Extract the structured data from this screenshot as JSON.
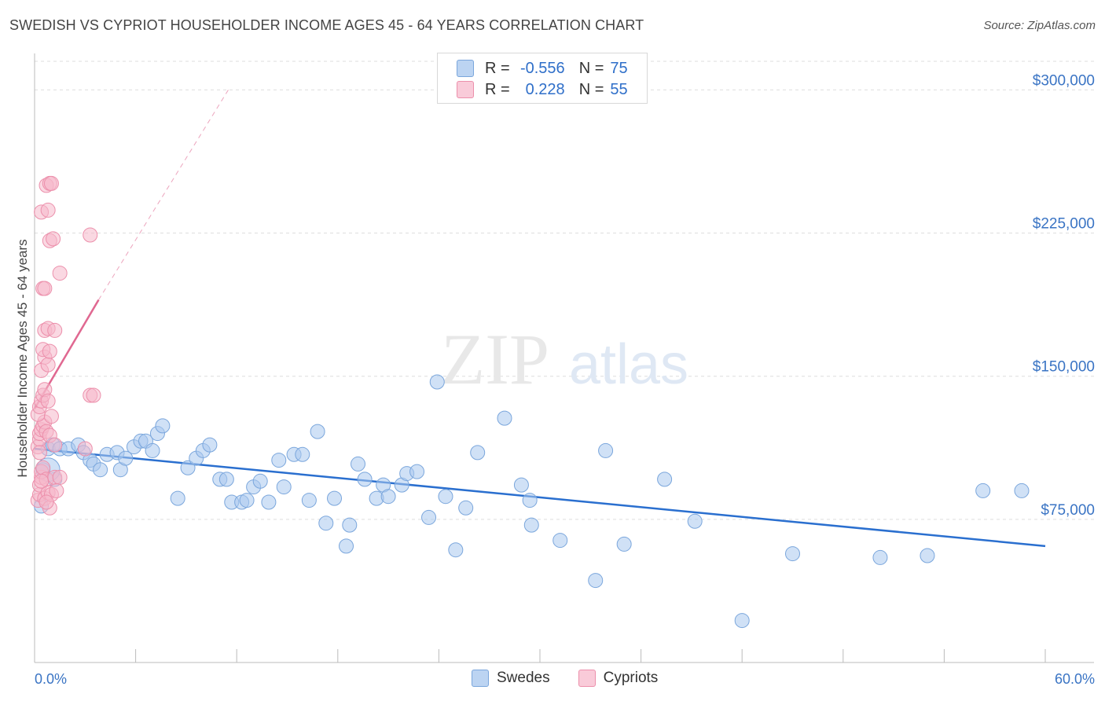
{
  "header": {
    "title": "SWEDISH VS CYPRIOT HOUSEHOLDER INCOME AGES 45 - 64 YEARS CORRELATION CHART",
    "source": "Source: ZipAtlas.com"
  },
  "watermark": {
    "zip": "ZIP",
    "atlas": "atlas"
  },
  "colors": {
    "swedes_fill": "#aac8ee",
    "swedes_stroke": "#7aa6dc",
    "swedes_line": "#2a6fcf",
    "cypriots_fill": "#f6b8cb",
    "cypriots_stroke": "#ec8fab",
    "cypriots_line": "#e06891",
    "tick_text": "#3a74c4",
    "grid": "#dddddd"
  },
  "legend": {
    "rows": [
      {
        "r_label": "R =",
        "r_value": "-0.556",
        "n_label": "N =",
        "n_value": "75"
      },
      {
        "r_label": "R =",
        "r_value": "0.228",
        "n_label": "N =",
        "n_value": "55"
      }
    ]
  },
  "bottom_legend": {
    "items": [
      "Swedes",
      "Cypriots"
    ]
  },
  "chart_data": {
    "type": "scatter",
    "title": "SWEDISH VS CYPRIOT HOUSEHOLDER INCOME AGES 45 - 64 YEARS CORRELATION CHART",
    "xlabel": "",
    "ylabel": "Householder Income Ages 45 - 64 years",
    "xlim": [
      0,
      60
    ],
    "ylim": [
      0,
      315000
    ],
    "x_tick_labels": [
      "0.0%",
      "60.0%"
    ],
    "y_ticks": [
      75000,
      150000,
      225000,
      300000
    ],
    "y_tick_labels": [
      "$75,000",
      "$150,000",
      "$225,000",
      "$300,000"
    ],
    "grid": true,
    "legend_position": "top-center",
    "series": [
      {
        "name": "Swedes",
        "r": -0.556,
        "n": 75,
        "trend": {
          "x": [
            0,
            60
          ],
          "y": [
            112000,
            61000
          ],
          "dashed_extension": false
        },
        "points": [
          [
            0.5,
            101000
          ],
          [
            0.8,
            112000
          ],
          [
            1.1,
            114000
          ],
          [
            1.5,
            112000
          ],
          [
            2.0,
            112000
          ],
          [
            2.6,
            114000
          ],
          [
            2.9,
            110000
          ],
          [
            3.3,
            106000
          ],
          [
            3.5,
            104000
          ],
          [
            3.9,
            101000
          ],
          [
            4.3,
            109000
          ],
          [
            4.9,
            110000
          ],
          [
            5.1,
            101000
          ],
          [
            5.4,
            107000
          ],
          [
            5.9,
            113000
          ],
          [
            6.3,
            116000
          ],
          [
            6.6,
            116000
          ],
          [
            7.0,
            111000
          ],
          [
            7.3,
            120000
          ],
          [
            7.6,
            124000
          ],
          [
            8.5,
            86000
          ],
          [
            9.1,
            102000
          ],
          [
            9.6,
            107000
          ],
          [
            10.0,
            111000
          ],
          [
            10.4,
            114000
          ],
          [
            11.0,
            96000
          ],
          [
            11.4,
            96000
          ],
          [
            11.7,
            84000
          ],
          [
            12.3,
            84000
          ],
          [
            12.6,
            85000
          ],
          [
            13.0,
            92000
          ],
          [
            13.4,
            95000
          ],
          [
            13.9,
            84000
          ],
          [
            14.5,
            106000
          ],
          [
            14.8,
            92000
          ],
          [
            15.4,
            109000
          ],
          [
            15.9,
            109000
          ],
          [
            16.3,
            85000
          ],
          [
            16.8,
            121000
          ],
          [
            17.3,
            73000
          ],
          [
            17.8,
            86000
          ],
          [
            18.5,
            61000
          ],
          [
            18.7,
            72000
          ],
          [
            19.2,
            104000
          ],
          [
            19.6,
            96000
          ],
          [
            20.3,
            86000
          ],
          [
            20.7,
            93000
          ],
          [
            21.0,
            87000
          ],
          [
            21.8,
            93000
          ],
          [
            22.1,
            99000
          ],
          [
            22.7,
            100000
          ],
          [
            23.4,
            76000
          ],
          [
            23.9,
            147000
          ],
          [
            24.4,
            87000
          ],
          [
            25.0,
            59000
          ],
          [
            25.6,
            81000
          ],
          [
            26.3,
            110000
          ],
          [
            27.9,
            128000
          ],
          [
            28.9,
            93000
          ],
          [
            29.4,
            85000
          ],
          [
            29.5,
            72000
          ],
          [
            31.2,
            64000
          ],
          [
            33.3,
            43000
          ],
          [
            33.9,
            111000
          ],
          [
            35.0,
            62000
          ],
          [
            37.4,
            96000
          ],
          [
            39.2,
            74000
          ],
          [
            42.0,
            22000
          ],
          [
            45.0,
            57000
          ],
          [
            50.2,
            55000
          ],
          [
            53.0,
            56000
          ],
          [
            56.3,
            90000
          ],
          [
            58.6,
            90000
          ],
          [
            0.4,
            82000
          ],
          [
            1.2,
            96000
          ]
        ]
      },
      {
        "name": "Cypriots",
        "r": 0.228,
        "n": 55,
        "trend": {
          "x": [
            0,
            3.8
          ],
          "y": [
            133000,
            190000
          ],
          "dashed_extension": true,
          "dash_to": {
            "x": 11.5,
            "y": 300000
          }
        },
        "points": [
          [
            0.2,
            85000
          ],
          [
            0.3,
            88000
          ],
          [
            0.3,
            93000
          ],
          [
            0.4,
            97000
          ],
          [
            0.4,
            100000
          ],
          [
            0.5,
            102000
          ],
          [
            0.6,
            86000
          ],
          [
            0.7,
            96000
          ],
          [
            0.8,
            89000
          ],
          [
            0.9,
            81000
          ],
          [
            1.0,
            88000
          ],
          [
            1.2,
            97000
          ],
          [
            0.2,
            113000
          ],
          [
            0.3,
            117000
          ],
          [
            0.3,
            120000
          ],
          [
            0.4,
            122000
          ],
          [
            0.5,
            124000
          ],
          [
            0.6,
            126000
          ],
          [
            0.7,
            121000
          ],
          [
            0.9,
            119000
          ],
          [
            0.2,
            130000
          ],
          [
            0.3,
            134000
          ],
          [
            0.4,
            137000
          ],
          [
            0.5,
            140000
          ],
          [
            0.6,
            143000
          ],
          [
            0.8,
            137000
          ],
          [
            1.0,
            129000
          ],
          [
            0.4,
            153000
          ],
          [
            0.6,
            160000
          ],
          [
            0.8,
            156000
          ],
          [
            0.5,
            164000
          ],
          [
            0.9,
            163000
          ],
          [
            0.6,
            174000
          ],
          [
            0.8,
            175000
          ],
          [
            1.2,
            174000
          ],
          [
            0.5,
            196000
          ],
          [
            0.6,
            196000
          ],
          [
            1.5,
            204000
          ],
          [
            0.9,
            221000
          ],
          [
            1.1,
            222000
          ],
          [
            0.4,
            236000
          ],
          [
            0.8,
            237000
          ],
          [
            0.7,
            250000
          ],
          [
            0.9,
            251000
          ],
          [
            1.0,
            251000
          ],
          [
            3.3,
            224000
          ],
          [
            3.3,
            140000
          ],
          [
            3.5,
            140000
          ],
          [
            3.0,
            112000
          ],
          [
            1.2,
            114000
          ],
          [
            0.3,
            110000
          ],
          [
            1.5,
            97000
          ],
          [
            0.7,
            84000
          ],
          [
            1.3,
            90000
          ],
          [
            0.4,
            95000
          ]
        ]
      }
    ]
  }
}
